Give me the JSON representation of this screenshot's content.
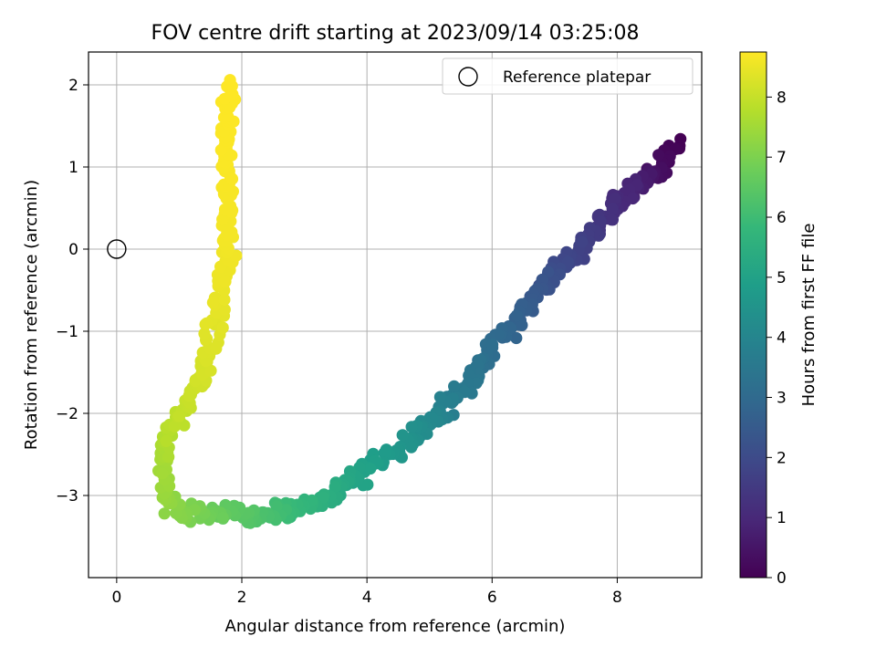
{
  "chart_data": {
    "type": "scatter",
    "title": "FOV centre drift starting at 2023/09/14 03:25:08",
    "xlabel": "Angular distance from reference (arcmin)",
    "ylabel": "Rotation from reference (arcmin)",
    "xlim": [
      -0.45,
      9.35
    ],
    "ylim": [
      -4.0,
      2.4
    ],
    "xticks": [
      0,
      2,
      4,
      6,
      8
    ],
    "xtick_labels": [
      "0",
      "2",
      "4",
      "6",
      "8"
    ],
    "yticks": [
      -3,
      -2,
      -1,
      0,
      1,
      2
    ],
    "ytick_labels": [
      "−3",
      "−2",
      "−1",
      "0",
      "1",
      "2"
    ],
    "grid": true,
    "legend": {
      "placement": "top-right",
      "entries": [
        {
          "label": "Reference platepar",
          "marker": "open-circle"
        }
      ]
    },
    "reference_point": {
      "x": 0,
      "y": 0
    },
    "colorbar": {
      "label": "Hours from first FF file",
      "range": [
        0,
        8.75
      ],
      "ticks": [
        0,
        1,
        2,
        3,
        4,
        5,
        6,
        7,
        8
      ],
      "tick_labels": [
        "0",
        "1",
        "2",
        "3",
        "4",
        "5",
        "6",
        "7",
        "8"
      ],
      "colormap": "viridis"
    },
    "colormap_stops": [
      "#440154",
      "#482878",
      "#3e4989",
      "#31688e",
      "#26828e",
      "#1f9e89",
      "#35b779",
      "#6ece58",
      "#b5de2b",
      "#fde725"
    ],
    "series": [
      {
        "path": [
          [
            8.95,
            1.3,
            0.0
          ],
          [
            8.7,
            0.95,
            0.3
          ],
          [
            8.45,
            0.85,
            0.6
          ],
          [
            8.2,
            0.75,
            0.9
          ],
          [
            7.9,
            0.45,
            1.2
          ],
          [
            7.6,
            0.2,
            1.5
          ],
          [
            7.3,
            -0.05,
            1.8
          ],
          [
            7.0,
            -0.3,
            2.1
          ],
          [
            6.7,
            -0.55,
            2.4
          ],
          [
            6.4,
            -0.85,
            2.7
          ],
          [
            6.1,
            -1.15,
            3.0
          ],
          [
            5.8,
            -1.45,
            3.3
          ],
          [
            5.5,
            -1.75,
            3.6
          ],
          [
            5.2,
            -2.0,
            3.9
          ],
          [
            4.9,
            -2.15,
            4.2
          ],
          [
            4.6,
            -2.4,
            4.5
          ],
          [
            4.2,
            -2.55,
            4.8
          ],
          [
            3.8,
            -2.8,
            5.1
          ],
          [
            3.4,
            -3.0,
            5.4
          ],
          [
            3.0,
            -3.15,
            5.7
          ],
          [
            2.6,
            -3.2,
            6.0
          ],
          [
            2.2,
            -3.3,
            6.3
          ],
          [
            1.8,
            -3.2,
            6.55
          ],
          [
            1.5,
            -3.25,
            6.8
          ],
          [
            1.2,
            -3.2,
            7.0
          ],
          [
            0.9,
            -3.15,
            7.2
          ],
          [
            0.75,
            -2.9,
            7.4
          ],
          [
            0.75,
            -2.5,
            7.6
          ],
          [
            0.85,
            -2.2,
            7.8
          ],
          [
            1.1,
            -1.9,
            8.0
          ],
          [
            1.4,
            -1.5,
            8.2
          ],
          [
            1.55,
            -1.0,
            8.35
          ],
          [
            1.65,
            -0.5,
            8.5
          ],
          [
            1.8,
            0.0,
            8.6
          ],
          [
            1.8,
            0.5,
            8.65
          ],
          [
            1.75,
            1.0,
            8.7
          ],
          [
            1.75,
            1.5,
            8.73
          ],
          [
            1.85,
            2.0,
            8.75
          ]
        ]
      }
    ]
  }
}
